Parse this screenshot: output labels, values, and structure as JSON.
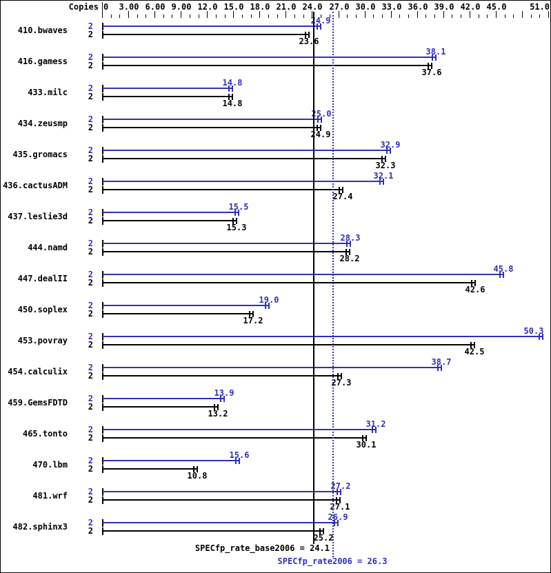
{
  "colors": {
    "peak": "#3030b8",
    "base": "#000000",
    "background": "#ffffff",
    "border": "#000000"
  },
  "chart_data": {
    "type": "bar",
    "orientation": "horizontal",
    "copies_header": "Copies",
    "x_axis": {
      "min": 0,
      "max": 51,
      "minor_step": 1,
      "major_step": 3,
      "labels": [
        {
          "v": 0,
          "t": "0"
        },
        {
          "v": 3,
          "t": "3.00"
        },
        {
          "v": 6,
          "t": "6.00"
        },
        {
          "v": 9,
          "t": "9.00"
        },
        {
          "v": 12,
          "t": "12.0"
        },
        {
          "v": 15,
          "t": "15.0"
        },
        {
          "v": 18,
          "t": "18.0"
        },
        {
          "v": 21,
          "t": "21.0"
        },
        {
          "v": 24,
          "t": "24.0"
        },
        {
          "v": 27,
          "t": "27.0"
        },
        {
          "v": 30,
          "t": "30.0"
        },
        {
          "v": 33,
          "t": "33.0"
        },
        {
          "v": 36,
          "t": "36.0"
        },
        {
          "v": 39,
          "t": "39.0"
        },
        {
          "v": 42,
          "t": "42.0"
        },
        {
          "v": 45,
          "t": "45.0"
        },
        {
          "v": 51,
          "t": "51.0"
        }
      ]
    },
    "series": [
      {
        "name": "peak",
        "color_key": "peak"
      },
      {
        "name": "base",
        "color_key": "base"
      }
    ],
    "benchmarks": [
      {
        "name": "410.bwaves",
        "copies_peak": 2,
        "copies_base": 2,
        "peak": 24.9,
        "base": 23.6
      },
      {
        "name": "416.gamess",
        "copies_peak": 2,
        "copies_base": 2,
        "peak": 38.1,
        "base": 37.6
      },
      {
        "name": "433.milc",
        "copies_peak": 2,
        "copies_base": 2,
        "peak": 14.8,
        "base": 14.8
      },
      {
        "name": "434.zeusmp",
        "copies_peak": 2,
        "copies_base": 2,
        "peak": 25.0,
        "base": 24.9
      },
      {
        "name": "435.gromacs",
        "copies_peak": 2,
        "copies_base": 2,
        "peak": 32.9,
        "base": 32.3
      },
      {
        "name": "436.cactusADM",
        "copies_peak": 2,
        "copies_base": 2,
        "peak": 32.1,
        "base": 27.4
      },
      {
        "name": "437.leslie3d",
        "copies_peak": 2,
        "copies_base": 2,
        "peak": 15.5,
        "base": 15.3
      },
      {
        "name": "444.namd",
        "copies_peak": 2,
        "copies_base": 2,
        "peak": 28.3,
        "base": 28.2
      },
      {
        "name": "447.dealII",
        "copies_peak": 2,
        "copies_base": 2,
        "peak": 45.8,
        "base": 42.6
      },
      {
        "name": "450.soplex",
        "copies_peak": 2,
        "copies_base": 2,
        "peak": 19.0,
        "base": 17.2
      },
      {
        "name": "453.povray",
        "copies_peak": 2,
        "copies_base": 2,
        "peak": 50.3,
        "base": 42.5
      },
      {
        "name": "454.calculix",
        "copies_peak": 2,
        "copies_base": 2,
        "peak": 38.7,
        "base": 27.3
      },
      {
        "name": "459.GemsFDTD",
        "copies_peak": 2,
        "copies_base": 2,
        "peak": 13.9,
        "base": 13.2
      },
      {
        "name": "465.tonto",
        "copies_peak": 2,
        "copies_base": 2,
        "peak": 31.2,
        "base": 30.1
      },
      {
        "name": "470.lbm",
        "copies_peak": 2,
        "copies_base": 2,
        "peak": 15.6,
        "base": 10.8
      },
      {
        "name": "481.wrf",
        "copies_peak": 2,
        "copies_base": 2,
        "peak": 27.2,
        "base": 27.1
      },
      {
        "name": "482.sphinx3",
        "copies_peak": 2,
        "copies_base": 2,
        "peak": 26.9,
        "base": 25.2
      }
    ],
    "reference_lines": [
      {
        "label": "SPECfp_rate_base2006 = 24.1",
        "value": 24.1,
        "style": "solid",
        "color_key": "base"
      },
      {
        "label": "SPECfp_rate2006 = 26.3",
        "value": 26.3,
        "style": "dotted",
        "color_key": "peak"
      }
    ]
  }
}
